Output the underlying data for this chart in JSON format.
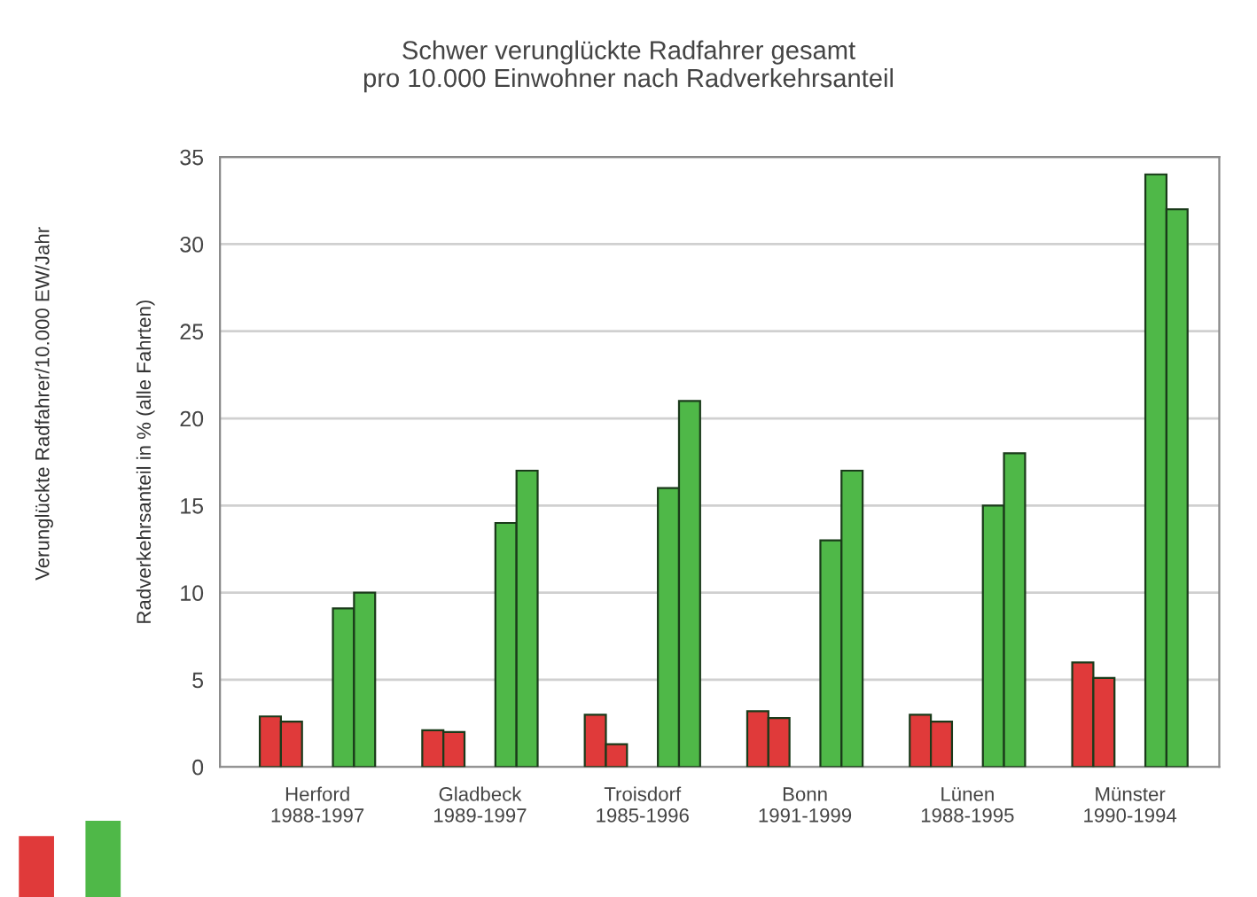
{
  "chart_data": {
    "type": "bar",
    "title": "Schwer verunglückte Radfahrer gesamt\npro 10.000 Einwohner nach Radverkehrsanteil",
    "ylabel": "Radverkehrsanteil in % (alle Fahrten)",
    "annotations": [
      "Verunglückte Radfahrer/10.000 EW/Jahr"
    ],
    "categories": [
      "Herford\n1988-1997",
      "Gladbeck\n1989-1997",
      "Troisdorf\n1985-1996",
      "Bonn\n1991-1999",
      "Lünen\n1988-1995",
      "Münster\n1990-1994"
    ],
    "series": [
      {
        "color": "#e03a3a",
        "values": [
          2.9,
          2.1,
          3.0,
          3.2,
          3.0,
          6.0
        ]
      },
      {
        "color": "#e03a3a",
        "values": [
          2.6,
          2.0,
          1.3,
          2.8,
          2.6,
          5.1
        ]
      },
      {
        "color": "#4fb848",
        "values": [
          9.1,
          14,
          16,
          13,
          15,
          34
        ]
      },
      {
        "color": "#4fb848",
        "values": [
          10,
          17,
          21,
          17,
          18,
          32
        ]
      }
    ],
    "ylim": [
      0,
      35
    ],
    "yticks": [
      0,
      5,
      10,
      15,
      20,
      25,
      30,
      35
    ],
    "grid": "y",
    "legend": false
  }
}
